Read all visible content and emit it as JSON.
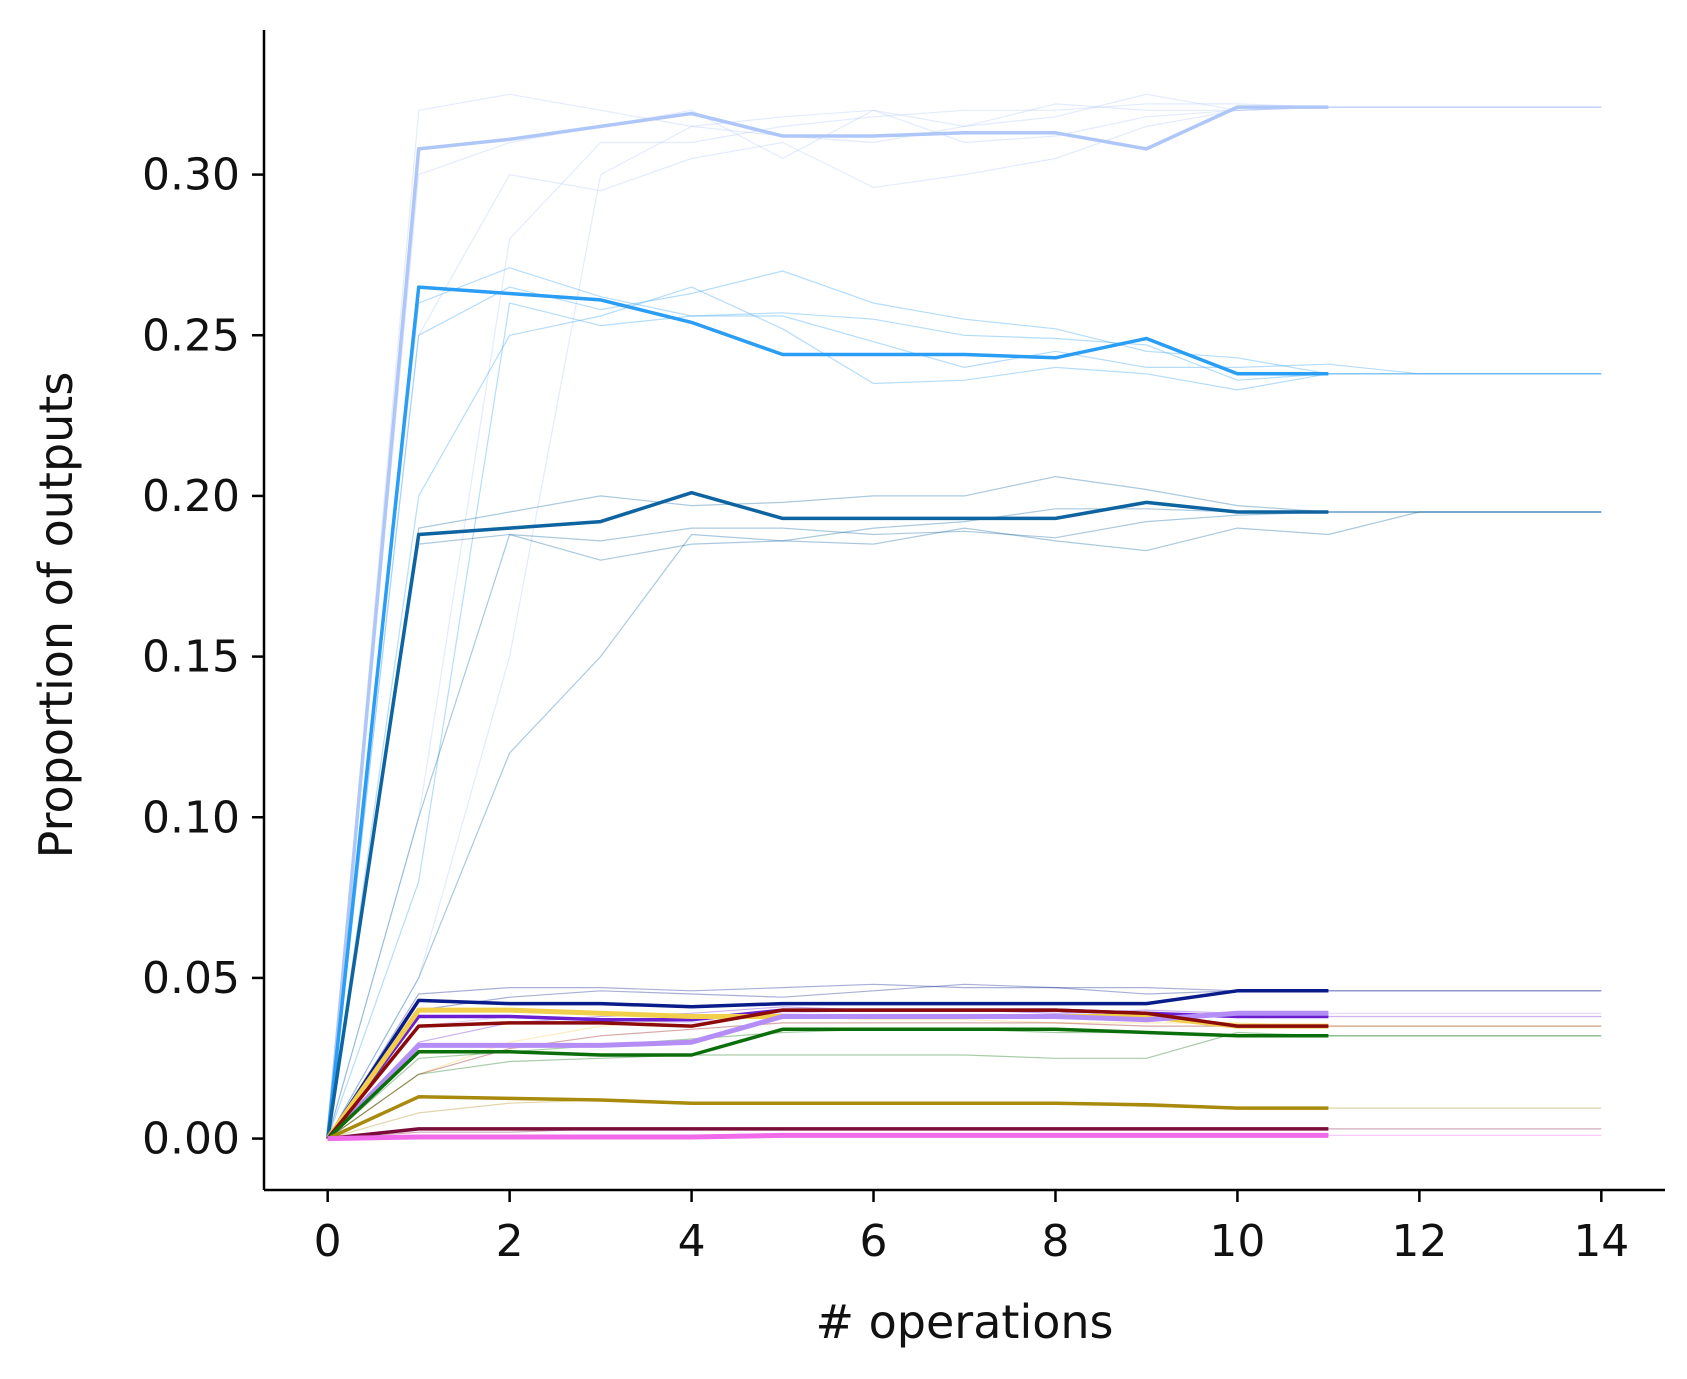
{
  "chart_data": {
    "type": "line",
    "title": "",
    "xlabel": "# operations",
    "ylabel": "Proportion of outputs",
    "xlim": [
      -0.7,
      14.7
    ],
    "ylim": [
      -0.016,
      0.345
    ],
    "xticks": [
      0,
      2,
      4,
      6,
      8,
      10,
      12,
      14
    ],
    "yticks": [
      0.0,
      0.05,
      0.1,
      0.15,
      0.2,
      0.25,
      0.3
    ],
    "xtick_labels": [
      "0",
      "2",
      "4",
      "6",
      "8",
      "10",
      "12",
      "14"
    ],
    "ytick_labels": [
      "0.00",
      "0.05",
      "0.10",
      "0.15",
      "0.20",
      "0.25",
      "0.30"
    ],
    "grid": false,
    "legend": false,
    "series": [
      {
        "color": "#aec7f8",
        "width": 3.5,
        "x": [
          0,
          1,
          2,
          3,
          4,
          5,
          6,
          7,
          8,
          9,
          10,
          11
        ],
        "y": [
          0,
          0.308,
          0.311,
          0.315,
          0.319,
          0.312,
          0.312,
          0.313,
          0.313,
          0.308,
          0.321,
          0.321
        ],
        "faint_x": [
          0,
          1,
          2,
          3,
          4,
          5,
          6,
          7,
          8,
          9,
          10,
          11,
          12,
          13,
          14
        ],
        "faint": [
          [
            0,
            0.32,
            0.325,
            0.32,
            0.315,
            0.318,
            0.32,
            0.31,
            0.312,
            0.318,
            0.32,
            0.321,
            0.321,
            0.321,
            0.321
          ],
          [
            0,
            0.3,
            0.31,
            0.315,
            0.32,
            0.305,
            0.32,
            0.315,
            0.322,
            0.32,
            0.32,
            0.321,
            0.321,
            0.321,
            0.321
          ],
          [
            0,
            0.25,
            0.3,
            0.295,
            0.305,
            0.31,
            0.296,
            0.3,
            0.305,
            0.315,
            0.32,
            0.321,
            0.321,
            0.321,
            0.321
          ],
          [
            0,
            0.1,
            0.28,
            0.31,
            0.31,
            0.315,
            0.318,
            0.32,
            0.32,
            0.322,
            0.322,
            0.321,
            0.321,
            0.321,
            0.321
          ],
          [
            0,
            0.05,
            0.15,
            0.3,
            0.315,
            0.312,
            0.31,
            0.315,
            0.318,
            0.325,
            0.32,
            0.321,
            0.321,
            0.321,
            0.321
          ]
        ]
      },
      {
        "color": "#2a9df4",
        "width": 3.5,
        "x": [
          0,
          1,
          2,
          3,
          4,
          5,
          6,
          7,
          8,
          9,
          10,
          11
        ],
        "y": [
          0,
          0.265,
          0.263,
          0.261,
          0.254,
          0.244,
          0.244,
          0.244,
          0.243,
          0.249,
          0.238,
          0.238
        ],
        "faint_x": [
          0,
          1,
          2,
          3,
          4,
          5,
          6,
          7,
          8,
          9,
          10,
          11,
          12,
          13,
          14
        ],
        "faint": [
          [
            0,
            0.26,
            0.271,
            0.262,
            0.256,
            0.256,
            0.248,
            0.24,
            0.245,
            0.24,
            0.24,
            0.241,
            0.238,
            0.238,
            0.238
          ],
          [
            0,
            0.25,
            0.265,
            0.258,
            0.263,
            0.27,
            0.26,
            0.255,
            0.252,
            0.245,
            0.243,
            0.238,
            0.238,
            0.238,
            0.238
          ],
          [
            0,
            0.2,
            0.25,
            0.256,
            0.265,
            0.252,
            0.235,
            0.236,
            0.24,
            0.238,
            0.233,
            0.238,
            0.238,
            0.238,
            0.238
          ],
          [
            0,
            0.08,
            0.26,
            0.253,
            0.256,
            0.257,
            0.255,
            0.25,
            0.249,
            0.247,
            0.236,
            0.238,
            0.238,
            0.238,
            0.238
          ]
        ]
      },
      {
        "color": "#0d64a0",
        "width": 3.5,
        "x": [
          0,
          1,
          2,
          3,
          4,
          5,
          6,
          7,
          8,
          9,
          10,
          11
        ],
        "y": [
          0,
          0.188,
          0.19,
          0.192,
          0.201,
          0.193,
          0.193,
          0.193,
          0.193,
          0.198,
          0.195,
          0.195
        ],
        "faint_x": [
          0,
          1,
          2,
          3,
          4,
          5,
          6,
          7,
          8,
          9,
          10,
          11,
          12,
          13,
          14
        ],
        "faint": [
          [
            0,
            0.19,
            0.195,
            0.2,
            0.197,
            0.198,
            0.2,
            0.2,
            0.206,
            0.202,
            0.197,
            0.195,
            0.195,
            0.195,
            0.195
          ],
          [
            0,
            0.185,
            0.188,
            0.18,
            0.185,
            0.186,
            0.185,
            0.19,
            0.186,
            0.183,
            0.19,
            0.188,
            0.195,
            0.195,
            0.195
          ],
          [
            0,
            0.1,
            0.188,
            0.186,
            0.19,
            0.19,
            0.188,
            0.189,
            0.187,
            0.192,
            0.194,
            0.195,
            0.195,
            0.195,
            0.195
          ],
          [
            0,
            0.05,
            0.12,
            0.15,
            0.188,
            0.186,
            0.19,
            0.192,
            0.196,
            0.196,
            0.195,
            0.195,
            0.195,
            0.195,
            0.195
          ]
        ]
      },
      {
        "color": "#0a1c8a",
        "width": 3.5,
        "x": [
          0,
          1,
          2,
          3,
          4,
          5,
          6,
          7,
          8,
          9,
          10,
          11
        ],
        "y": [
          0,
          0.043,
          0.042,
          0.042,
          0.041,
          0.042,
          0.042,
          0.042,
          0.042,
          0.042,
          0.046,
          0.046
        ],
        "faint_x": [
          0,
          1,
          2,
          3,
          4,
          5,
          6,
          7,
          8,
          9,
          10,
          11,
          12,
          13,
          14
        ],
        "faint": [
          [
            0,
            0.045,
            0.047,
            0.047,
            0.046,
            0.047,
            0.048,
            0.047,
            0.047,
            0.047,
            0.046,
            0.046,
            0.046,
            0.046,
            0.046
          ],
          [
            0,
            0.04,
            0.044,
            0.046,
            0.045,
            0.044,
            0.046,
            0.048,
            0.047,
            0.045,
            0.046,
            0.046,
            0.046,
            0.046,
            0.046
          ]
        ]
      },
      {
        "color": "#6a1fd0",
        "width": 3.5,
        "x": [
          0,
          1,
          2,
          3,
          4,
          5,
          6,
          7,
          8,
          9,
          10,
          11
        ],
        "y": [
          0,
          0.038,
          0.038,
          0.037,
          0.037,
          0.04,
          0.04,
          0.04,
          0.04,
          0.039,
          0.038,
          0.038
        ],
        "faint_x": [
          0,
          1,
          2,
          3,
          4,
          5,
          6,
          7,
          8,
          9,
          10,
          11,
          12,
          13,
          14
        ],
        "faint": [
          [
            0,
            0.03,
            0.036,
            0.038,
            0.039,
            0.041,
            0.04,
            0.04,
            0.039,
            0.04,
            0.039,
            0.038,
            0.038,
            0.038,
            0.038
          ]
        ]
      },
      {
        "color": "#f2cf4a",
        "width": 5,
        "x": [
          0,
          1,
          2,
          3,
          4,
          5,
          6,
          7,
          8,
          9,
          10,
          11
        ],
        "y": [
          0,
          0.04,
          0.04,
          0.039,
          0.038,
          0.038,
          0.038,
          0.038,
          0.038,
          0.038,
          0.035,
          0.035
        ],
        "faint_x": [
          0,
          1,
          2,
          3,
          4,
          5,
          6,
          7,
          8,
          9,
          10,
          11,
          12,
          13,
          14
        ],
        "faint": [
          [
            0,
            0.02,
            0.03,
            0.035,
            0.037,
            0.038,
            0.037,
            0.037,
            0.036,
            0.036,
            0.036,
            0.035,
            0.035,
            0.035,
            0.035
          ]
        ]
      },
      {
        "color": "#b48ef6",
        "width": 5,
        "x": [
          0,
          1,
          2,
          3,
          4,
          5,
          6,
          7,
          8,
          9,
          10,
          11
        ],
        "y": [
          0,
          0.029,
          0.029,
          0.029,
          0.03,
          0.038,
          0.038,
          0.038,
          0.038,
          0.037,
          0.039,
          0.039
        ],
        "faint_x": [
          0,
          1,
          2,
          3,
          4,
          5,
          6,
          7,
          8,
          9,
          10,
          11,
          12,
          13,
          14
        ],
        "faint": [
          [
            0,
            0.035,
            0.038,
            0.037,
            0.036,
            0.039,
            0.04,
            0.04,
            0.039,
            0.039,
            0.039,
            0.039,
            0.039,
            0.039,
            0.039
          ]
        ]
      },
      {
        "color": "#8b0a0a",
        "width": 3.5,
        "x": [
          0,
          1,
          2,
          3,
          4,
          5,
          6,
          7,
          8,
          9,
          10,
          11
        ],
        "y": [
          0,
          0.035,
          0.036,
          0.036,
          0.035,
          0.04,
          0.04,
          0.04,
          0.04,
          0.039,
          0.035,
          0.035
        ],
        "faint_x": [
          0,
          1,
          2,
          3,
          4,
          5,
          6,
          7,
          8,
          9,
          10,
          11,
          12,
          13,
          14
        ],
        "faint": [
          [
            0,
            0.02,
            0.028,
            0.032,
            0.034,
            0.036,
            0.036,
            0.036,
            0.036,
            0.035,
            0.035,
            0.035,
            0.035,
            0.035,
            0.035
          ]
        ]
      },
      {
        "color": "#0a6e0a",
        "width": 3.5,
        "x": [
          0,
          1,
          2,
          3,
          4,
          5,
          6,
          7,
          8,
          9,
          10,
          11
        ],
        "y": [
          0,
          0.027,
          0.027,
          0.026,
          0.026,
          0.034,
          0.034,
          0.034,
          0.034,
          0.033,
          0.032,
          0.032
        ],
        "faint_x": [
          0,
          1,
          2,
          3,
          4,
          5,
          6,
          7,
          8,
          9,
          10,
          11,
          12,
          13,
          14
        ],
        "faint": [
          [
            0,
            0.02,
            0.024,
            0.025,
            0.026,
            0.026,
            0.026,
            0.026,
            0.025,
            0.025,
            0.033,
            0.032,
            0.032,
            0.032,
            0.032
          ],
          [
            0,
            0.025,
            0.027,
            0.029,
            0.031,
            0.033,
            0.034,
            0.034,
            0.033,
            0.033,
            0.032,
            0.032,
            0.032,
            0.032,
            0.032
          ]
        ]
      },
      {
        "color": "#a88a0c",
        "width": 3.5,
        "x": [
          0,
          1,
          2,
          3,
          4,
          5,
          6,
          7,
          8,
          9,
          10,
          11
        ],
        "y": [
          0,
          0.013,
          0.0125,
          0.012,
          0.011,
          0.011,
          0.011,
          0.011,
          0.011,
          0.0105,
          0.0095,
          0.0095
        ],
        "faint_x": [
          0,
          1,
          2,
          3,
          4,
          5,
          6,
          7,
          8,
          9,
          10,
          11,
          12,
          13,
          14
        ],
        "faint": [
          [
            0,
            0.008,
            0.011,
            0.012,
            0.011,
            0.011,
            0.011,
            0.011,
            0.011,
            0.01,
            0.0095,
            0.0095,
            0.0095,
            0.0095,
            0.0095
          ]
        ]
      },
      {
        "color": "#7a0c3a",
        "width": 3.5,
        "x": [
          0,
          1,
          2,
          3,
          4,
          5,
          6,
          7,
          8,
          9,
          10,
          11
        ],
        "y": [
          0,
          0.003,
          0.003,
          0.003,
          0.003,
          0.003,
          0.003,
          0.003,
          0.003,
          0.003,
          0.003,
          0.003
        ],
        "faint_x": [
          0,
          1,
          2,
          3,
          4,
          5,
          6,
          7,
          8,
          9,
          10,
          11,
          12,
          13,
          14
        ],
        "faint": [
          [
            0,
            0.002,
            0.002,
            0.003,
            0.003,
            0.003,
            0.003,
            0.003,
            0.003,
            0.003,
            0.003,
            0.003,
            0.003,
            0.003,
            0.003
          ]
        ]
      },
      {
        "color": "#f06aea",
        "width": 5,
        "x": [
          0,
          1,
          2,
          3,
          4,
          5,
          6,
          7,
          8,
          9,
          10,
          11
        ],
        "y": [
          0,
          0.0005,
          0.0005,
          0.0005,
          0.0005,
          0.001,
          0.001,
          0.001,
          0.001,
          0.001,
          0.001,
          0.001
        ],
        "faint_x": [
          0,
          1,
          2,
          3,
          4,
          5,
          6,
          7,
          8,
          9,
          10,
          11,
          12,
          13,
          14
        ],
        "faint": [
          [
            0,
            0.001,
            0.001,
            0.001,
            0.001,
            0.001,
            0.001,
            0.001,
            0.001,
            0.001,
            0.001,
            0.001,
            0.001,
            0.001,
            0.001
          ]
        ]
      }
    ]
  }
}
